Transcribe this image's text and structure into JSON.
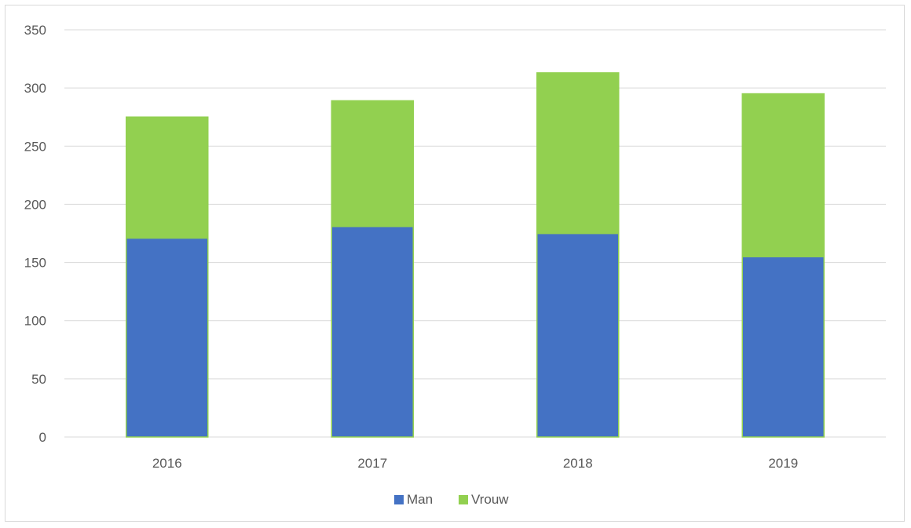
{
  "chart_data": {
    "type": "bar",
    "stacked": true,
    "categories": [
      "2016",
      "2017",
      "2018",
      "2019"
    ],
    "series": [
      {
        "name": "Man",
        "values": [
          171,
          181,
          175,
          155
        ],
        "color": "#4472c4"
      },
      {
        "name": "Vrouw",
        "values": [
          104,
          108,
          138,
          140
        ],
        "color": "#92d050"
      }
    ],
    "title": "",
    "xlabel": "",
    "ylabel": "",
    "ylim": [
      0,
      350
    ],
    "yticks": [
      "0",
      "50",
      "100",
      "150",
      "200",
      "250",
      "300",
      "350"
    ],
    "ytick_values": [
      0,
      50,
      100,
      150,
      200,
      250,
      300,
      350
    ],
    "grid": true,
    "legend": "bottom-center",
    "gridline_color": "#d9d9d9",
    "bar_outline_color": "#92d050"
  }
}
